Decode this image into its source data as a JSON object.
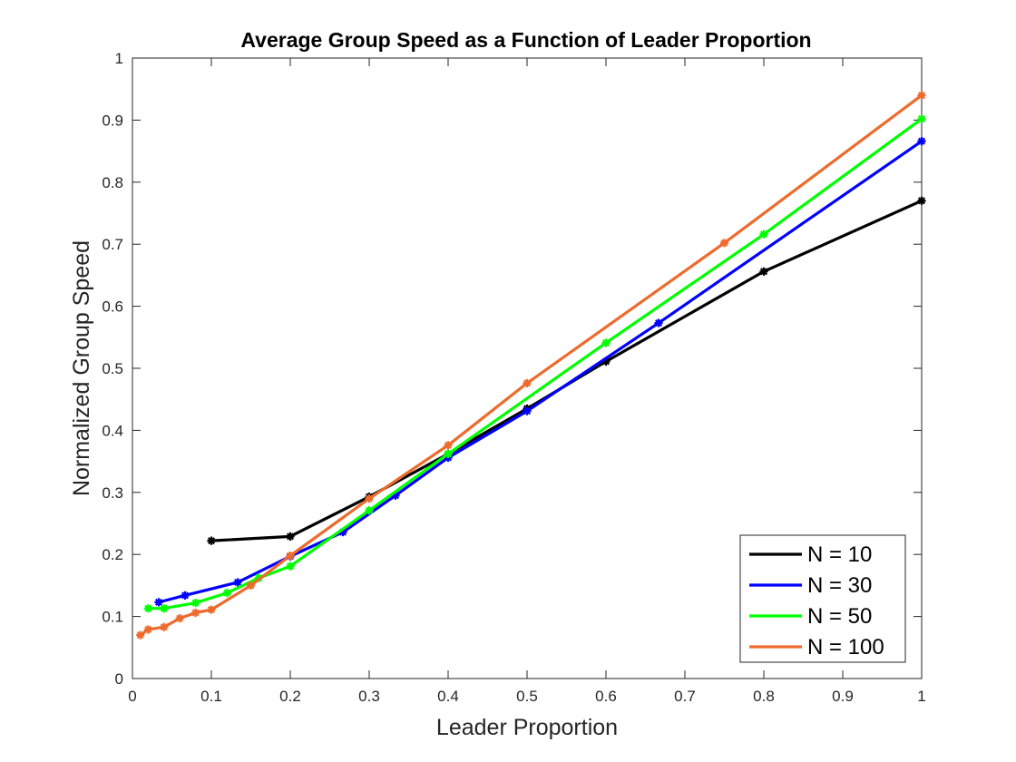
{
  "chart_data": {
    "type": "line",
    "title": "Average Group Speed as a Function of Leader Proportion",
    "xlabel": "Leader Proportion",
    "ylabel": "Normalized Group Speed",
    "xlim": [
      0,
      1
    ],
    "ylim": [
      0,
      1
    ],
    "xticks": [
      "0",
      "0.1",
      "0.2",
      "0.3",
      "0.4",
      "0.5",
      "0.6",
      "0.7",
      "0.8",
      "0.9",
      "1"
    ],
    "yticks": [
      "0",
      "0.1",
      "0.2",
      "0.3",
      "0.4",
      "0.5",
      "0.6",
      "0.7",
      "0.8",
      "0.9",
      "1"
    ],
    "grid": false,
    "legend_position": "bottom-right",
    "series": [
      {
        "name": "N = 10",
        "color": "#000000",
        "x": [
          0.1,
          0.2,
          0.3,
          0.4,
          0.5,
          0.6,
          0.8,
          1.0
        ],
        "y": [
          0.222,
          0.229,
          0.293,
          0.362,
          0.435,
          0.511,
          0.656,
          0.77
        ]
      },
      {
        "name": "N = 30",
        "color": "#0000ff",
        "x": [
          0.0333,
          0.0667,
          0.1333,
          0.2,
          0.2667,
          0.3333,
          0.4,
          0.5,
          0.6667,
          1.0
        ],
        "y": [
          0.123,
          0.134,
          0.155,
          0.197,
          0.236,
          0.295,
          0.356,
          0.431,
          0.573,
          0.866
        ]
      },
      {
        "name": "N = 50",
        "color": "#00ff00",
        "x": [
          0.02,
          0.04,
          0.08,
          0.12,
          0.16,
          0.2,
          0.3,
          0.4,
          0.6,
          0.8,
          1.0
        ],
        "y": [
          0.113,
          0.113,
          0.122,
          0.138,
          0.162,
          0.181,
          0.271,
          0.362,
          0.541,
          0.716,
          0.902
        ]
      },
      {
        "name": "N = 100",
        "color": "#ed6b2c",
        "x": [
          0.01,
          0.02,
          0.04,
          0.06,
          0.08,
          0.1,
          0.15,
          0.2,
          0.3,
          0.4,
          0.5,
          0.75,
          1.0
        ],
        "y": [
          0.07,
          0.079,
          0.083,
          0.097,
          0.106,
          0.111,
          0.15,
          0.198,
          0.29,
          0.376,
          0.476,
          0.702,
          0.94
        ]
      }
    ]
  }
}
